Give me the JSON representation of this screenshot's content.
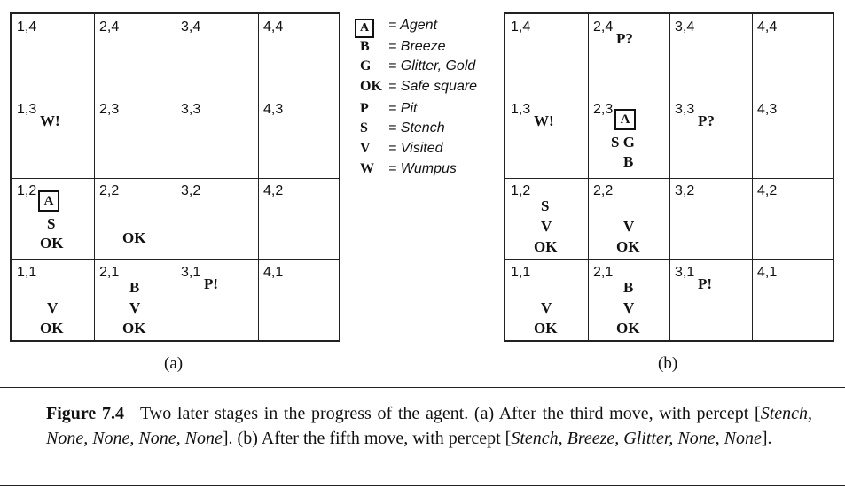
{
  "grids": [
    {
      "id": "a",
      "caption": "(a)",
      "cells": [
        {
          "coord": "1,4",
          "marks": []
        },
        {
          "coord": "2,4",
          "marks": []
        },
        {
          "coord": "3,4",
          "marks": []
        },
        {
          "coord": "4,4",
          "marks": []
        },
        {
          "coord": "1,3",
          "marks": [
            "W!"
          ]
        },
        {
          "coord": "2,3",
          "marks": []
        },
        {
          "coord": "3,3",
          "marks": []
        },
        {
          "coord": "4,3",
          "marks": []
        },
        {
          "coord": "1,2",
          "agent": "A",
          "marks": [
            "S",
            "OK"
          ]
        },
        {
          "coord": "2,2",
          "marks": [
            "OK"
          ]
        },
        {
          "coord": "3,2",
          "marks": []
        },
        {
          "coord": "4,2",
          "marks": []
        },
        {
          "coord": "1,1",
          "marks": [
            "V",
            "OK"
          ]
        },
        {
          "coord": "2,1",
          "marks": [
            "B",
            "V",
            "OK"
          ]
        },
        {
          "coord": "3,1",
          "marks": [
            "P!"
          ]
        },
        {
          "coord": "4,1",
          "marks": []
        }
      ]
    },
    {
      "id": "b",
      "caption": "(b)",
      "cells": [
        {
          "coord": "1,4",
          "marks": []
        },
        {
          "coord": "2,4",
          "marks": [
            "P?"
          ]
        },
        {
          "coord": "3,4",
          "marks": []
        },
        {
          "coord": "4,4",
          "marks": []
        },
        {
          "coord": "1,3",
          "marks": [
            "W!"
          ]
        },
        {
          "coord": "2,3",
          "agent": "A",
          "marks": [
            "S G",
            "B"
          ]
        },
        {
          "coord": "3,3",
          "marks": [
            "P?"
          ]
        },
        {
          "coord": "4,3",
          "marks": []
        },
        {
          "coord": "1,2",
          "marks": [
            "S",
            "V",
            "OK"
          ]
        },
        {
          "coord": "2,2",
          "marks": [
            "V",
            "OK"
          ]
        },
        {
          "coord": "3,2",
          "marks": []
        },
        {
          "coord": "4,2",
          "marks": []
        },
        {
          "coord": "1,1",
          "marks": [
            "V",
            "OK"
          ]
        },
        {
          "coord": "2,1",
          "marks": [
            "B",
            "V",
            "OK"
          ]
        },
        {
          "coord": "3,1",
          "marks": [
            "P!"
          ]
        },
        {
          "coord": "4,1",
          "marks": []
        }
      ]
    }
  ],
  "legend": [
    {
      "symbol": "A",
      "boxed": true,
      "definition": "= Agent"
    },
    {
      "symbol": "B",
      "definition": "= Breeze"
    },
    {
      "symbol": "G",
      "definition": "= Glitter, Gold"
    },
    {
      "symbol": "OK",
      "definition": "= Safe square"
    },
    {
      "symbol": "P",
      "definition": "= Pit"
    },
    {
      "symbol": "S",
      "definition": "= Stench"
    },
    {
      "symbol": "V",
      "definition": "= Visited"
    },
    {
      "symbol": "W",
      "definition": "= Wumpus"
    }
  ],
  "figure_caption": {
    "label": "Figure 7.4",
    "text_1": "Two later stages in the progress of the agent.  (a) After the third move, with percept [",
    "percept_a": "Stench, None, None, None, None",
    "text_2": "].  (b) After the fifth move, with percept [",
    "percept_b": "Stench, Breeze, Glitter, None, None",
    "text_3": "]."
  }
}
